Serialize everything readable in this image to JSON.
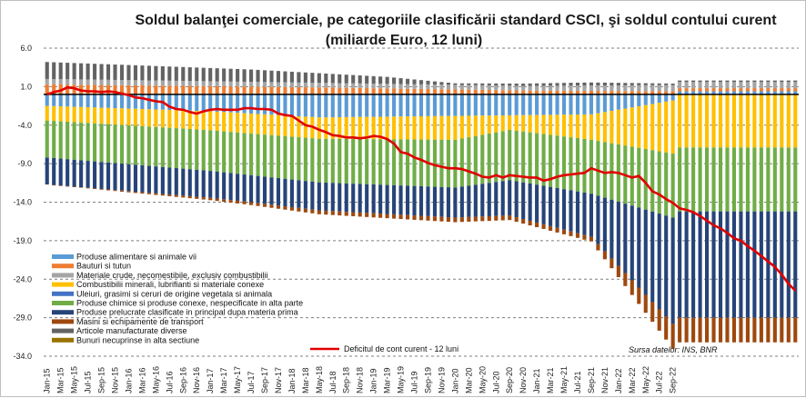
{
  "chart_data": {
    "type": "bar",
    "title": "Soldul balanţei comerciale, pe categoriile clasificării standard CSCI, şi soldul contului curent",
    "subtitle": "(miliarde Euro, 12 luni)",
    "source": "Sursa datelor: INS, BNR",
    "ylim": [
      -34,
      6
    ],
    "yticks": [
      "6.0",
      "1.0",
      "-4.0",
      "-9.0",
      "-14.0",
      "-19.0",
      "-24.0",
      "-29.0",
      "-34.0"
    ],
    "x_tick_labels": [
      "Jan-15",
      "Mar-15",
      "May-15",
      "Jul-15",
      "Sep-15",
      "Nov-15",
      "Jan-16",
      "Mar-16",
      "May-16",
      "Jul-16",
      "Sep-16",
      "Nov-16",
      "Jan-17",
      "Mar-17",
      "May-17",
      "Jul-17",
      "Sep-17",
      "Nov-17",
      "Jan-18",
      "Mar-18",
      "May-18",
      "Jul-18",
      "Sep-18",
      "Nov-18",
      "Jan-19",
      "Mar-19",
      "May-19",
      "Jul-19",
      "Sep-19",
      "Nov-19",
      "Jan-20",
      "Mar-20",
      "May-20",
      "Jul-20",
      "Sep-20",
      "Nov-20",
      "Jan-21",
      "Mar-21",
      "May-21",
      "Jul-21",
      "Sep-21",
      "Nov-21",
      "Jan-22",
      "Mar-22",
      "May-22",
      "Jul-22",
      "Sep-22"
    ],
    "series": [
      {
        "name": "Produse alimentare si animale vii",
        "color": "#5b9bd5",
        "start": -1.5,
        "end": 0.4,
        "bp": [
          [
            0,
            -1.5
          ],
          [
            24,
            -2.2
          ],
          [
            40,
            -3.0
          ],
          [
            60,
            -2.8
          ],
          [
            80,
            -2.6
          ],
          [
            92,
            -0.8
          ],
          [
            92,
            0.4
          ]
        ]
      },
      {
        "name": "Bauturi si tutun",
        "color": "#ed7d31",
        "bp": [
          [
            0,
            1.3
          ],
          [
            40,
            0.9
          ],
          [
            70,
            0.5
          ],
          [
            92,
            0.4
          ]
        ]
      },
      {
        "name": "Materiale crude, necomestibile, exclusiv combustibilii",
        "color": "#a5a5a5",
        "bp": [
          [
            0,
            0.7
          ],
          [
            40,
            0.6
          ],
          [
            70,
            0.6
          ],
          [
            92,
            0.8
          ]
        ]
      },
      {
        "name": "Combustibilii minerali, lubrifianti si materiale conexe",
        "color": "#ffc000",
        "bp": [
          [
            0,
            -1.9
          ],
          [
            30,
            -2.6
          ],
          [
            60,
            -3.1
          ],
          [
            68,
            -1.9
          ],
          [
            80,
            -3.3
          ],
          [
            92,
            -6.9
          ]
        ]
      },
      {
        "name": "Uleiuri, grasimi si ceruri de origine vegetala si animala",
        "color": "#4472c4",
        "bp": [
          [
            0,
            0.0
          ],
          [
            92,
            0.0
          ]
        ]
      },
      {
        "name": "Produse chimice si produse conexe, nespecificate in alta parte",
        "color": "#70ad47",
        "bp": [
          [
            0,
            -4.8
          ],
          [
            30,
            -5.4
          ],
          [
            60,
            -6.2
          ],
          [
            80,
            -7.0
          ],
          [
            92,
            -8.3
          ]
        ]
      },
      {
        "name": "Produse prelucrate clasificate in principal dupa materia prima",
        "color": "#264478",
        "bp": [
          [
            0,
            -3.5
          ],
          [
            30,
            -3.5
          ],
          [
            60,
            -3.9
          ],
          [
            80,
            -5.6
          ],
          [
            92,
            -13.8
          ]
        ]
      },
      {
        "name": "Masini si echipamente de transport",
        "color": "#9e480e",
        "bp": [
          [
            0,
            0.0
          ],
          [
            40,
            -0.5
          ],
          [
            60,
            -0.6
          ],
          [
            80,
            -0.6
          ],
          [
            92,
            -3.2
          ]
        ]
      },
      {
        "name": "Articole manufacturate diverse",
        "color": "#636363",
        "bp": [
          [
            0,
            2.2
          ],
          [
            30,
            1.6
          ],
          [
            50,
            0.9
          ],
          [
            60,
            0.2
          ],
          [
            80,
            0.4
          ],
          [
            92,
            0.2
          ]
        ]
      },
      {
        "name": "Bunuri necuprinse in alta sectiune",
        "color": "#997300",
        "bp": [
          [
            0,
            0.0
          ],
          [
            92,
            0.0
          ]
        ]
      }
    ],
    "current_account": {
      "name": "Deficitul de cont curent - 12 luni",
      "color": "#e00000",
      "values": [
        0.0,
        0.3,
        0.5,
        0.9,
        0.8,
        0.5,
        0.4,
        0.4,
        0.3,
        0.4,
        0.3,
        0.1,
        -0.1,
        -0.4,
        -0.5,
        -0.7,
        -0.9,
        -1.0,
        -1.6,
        -1.9,
        -2.0,
        -2.3,
        -2.5,
        -2.2,
        -2.0,
        -1.9,
        -2.0,
        -2.0,
        -2.0,
        -1.8,
        -1.8,
        -1.9,
        -1.9,
        -2.0,
        -2.5,
        -2.7,
        -2.8,
        -3.4,
        -4.0,
        -4.2,
        -4.6,
        -4.9,
        -5.3,
        -5.4,
        -5.6,
        -5.6,
        -5.7,
        -5.6,
        -5.4,
        -5.5,
        -5.8,
        -6.4,
        -7.5,
        -7.7,
        -8.2,
        -8.5,
        -8.9,
        -9.2,
        -9.4,
        -9.6,
        -9.6,
        -9.7,
        -10.0,
        -10.3,
        -10.7,
        -10.8,
        -10.5,
        -10.8,
        -10.5,
        -10.6,
        -10.7,
        -10.8,
        -10.8,
        -11.2,
        -11.0,
        -10.7,
        -10.5,
        -10.4,
        -10.3,
        -10.2,
        -9.6,
        -9.9,
        -10.2,
        -10.1,
        -10.2,
        -10.5,
        -10.8,
        -10.6,
        -11.5,
        -12.6,
        -13.0,
        -13.6,
        -14.1,
        -14.8,
        -15.0,
        -15.3,
        -15.8,
        -16.4,
        -17.0,
        -17.4,
        -18.0,
        -18.7,
        -19.0,
        -19.7,
        -20.3,
        -21.0,
        -21.7,
        -22.4,
        -23.4,
        -24.6,
        -25.5
      ]
    },
    "legend_position": "left",
    "grid": "dashed horizontal"
  }
}
